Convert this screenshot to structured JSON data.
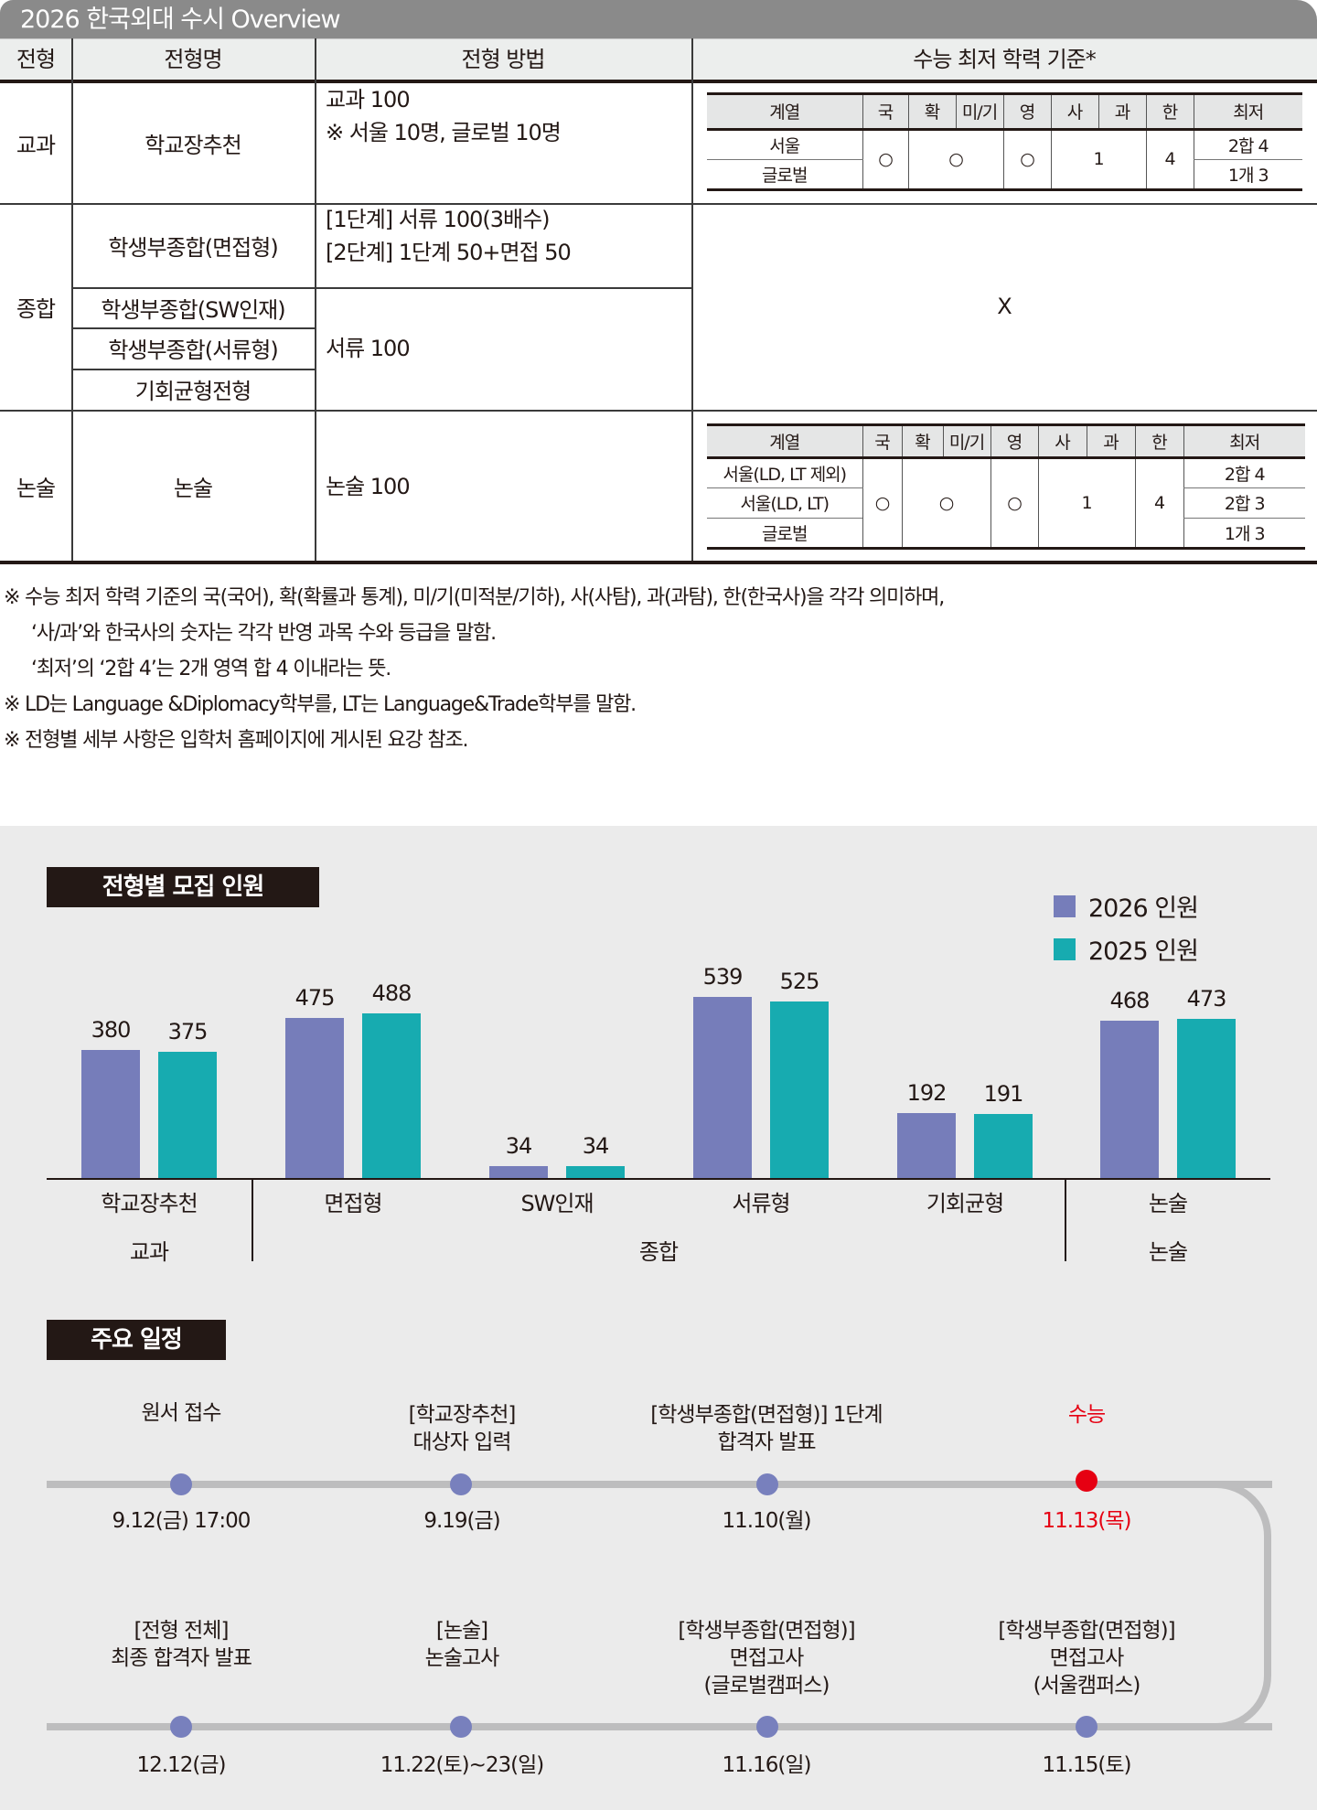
{
  "title": "2026 한국외대 수시 Overview",
  "table": {
    "headers": [
      "전형",
      "전형명",
      "전형 방법",
      "수능 최저 학력 기준*"
    ],
    "rows": {
      "gyogwa": {
        "type": "교과",
        "name": "학교장추천",
        "method_line1": "교과 100",
        "method_line2": "※ 서울 10명, 글로벌 10명"
      },
      "jonghap": {
        "type": "종합",
        "names": [
          "학생부종합(면접형)",
          "학생부종합(SW인재)",
          "학생부종합(서류형)",
          "기회균형전형"
        ],
        "method1_line1": "[1단계] 서류 100(3배수)",
        "method1_line2": "[2단계] 1단계 50+면접 50",
        "method2": "서류 100",
        "criteria": "X"
      },
      "nonsul": {
        "type": "논술",
        "name": "논술",
        "method": "논술 100"
      }
    },
    "criteria_headers": [
      "계열",
      "국",
      "확",
      "미/기",
      "영",
      "사",
      "과",
      "한",
      "최저"
    ],
    "criteria_gyogwa": {
      "rows": [
        "서울",
        "글로벌"
      ],
      "kor": "○",
      "math": "○",
      "eng": "○",
      "social_sci": "1",
      "history": "4",
      "minimum": [
        "2합 4",
        "1개 3"
      ]
    },
    "criteria_nonsul": {
      "rows": [
        "서울(LD, LT 제외)",
        "서울(LD, LT)",
        "글로벌"
      ],
      "kor": "○",
      "math": "○",
      "eng": "○",
      "social_sci": "1",
      "history": "4",
      "minimum": [
        "2합 4",
        "2합 3",
        "1개 3"
      ]
    }
  },
  "notes": [
    "※ 수능 최저 학력 기준의 국(국어), 확(확률과 통계), 미/기(미적분/기하), 사(사탐), 과(과탐), 한(한국사)을 각각 의미하며,",
    "‘사/과’와 한국사의 숫자는 각각 반영 과목 수와 등급을 말함.",
    "‘최저’의 ‘2합 4’는 2개 영역 합 4 이내라는 뜻.",
    "※ LD는 Language &Diplomacy학부를, LT는 Language&Trade학부를 말함.",
    "※ 전형별 세부 사항은 입학처 홈페이지에 게시된 요강 참조."
  ],
  "chart_section_title": "전형별 모집 인원",
  "chart_data": {
    "type": "bar",
    "title": "전형별 모집 인원",
    "categories": [
      "학교장추천",
      "면접형",
      "SW인재",
      "서류형",
      "기회균형",
      "논술"
    ],
    "groups": [
      {
        "label": "교과",
        "categories": [
          "학교장추천"
        ]
      },
      {
        "label": "종합",
        "categories": [
          "면접형",
          "SW인재",
          "서류형",
          "기회균형"
        ]
      },
      {
        "label": "논술",
        "categories": [
          "논술"
        ]
      }
    ],
    "series": [
      {
        "name": "2026 인원",
        "color": "#767dba",
        "values": [
          380,
          475,
          34,
          539,
          192,
          468
        ]
      },
      {
        "name": "2025 인원",
        "color": "#17abb0",
        "values": [
          375,
          488,
          34,
          525,
          191,
          473
        ]
      }
    ],
    "xlabel": "",
    "ylabel": "",
    "grid": false,
    "legend_position": "top-right"
  },
  "schedule": {
    "title": "주요 일정",
    "top_row": [
      {
        "label1": "",
        "label2": "원서 접수",
        "date": "9.12(금) 17:00",
        "highlight": false
      },
      {
        "label1": "[학교장추천]",
        "label2": "대상자 입력",
        "date": "9.19(금)",
        "highlight": false
      },
      {
        "label1": "[학생부종합(면접형)] 1단계",
        "label2": "합격자 발표",
        "date": "11.10(월)",
        "highlight": false
      },
      {
        "label1": "",
        "label2": "수능",
        "date": "11.13(목)",
        "highlight": true
      }
    ],
    "bottom_row": [
      {
        "label1": "",
        "label2": "[전형 전체]",
        "label3": "최종 합격자 발표",
        "date": "12.12(금)"
      },
      {
        "label1": "",
        "label2": "[논술]",
        "label3": "논술고사",
        "date": "11.22(토)~23(일)"
      },
      {
        "label1": "[학생부종합(면접형)]",
        "label2": "면접고사",
        "label3": "(글로벌캠퍼스)",
        "date": "11.16(일)"
      },
      {
        "label1": "[학생부종합(면접형)]",
        "label2": "면접고사",
        "label3": "(서울캠퍼스)",
        "date": "11.15(토)"
      }
    ]
  }
}
